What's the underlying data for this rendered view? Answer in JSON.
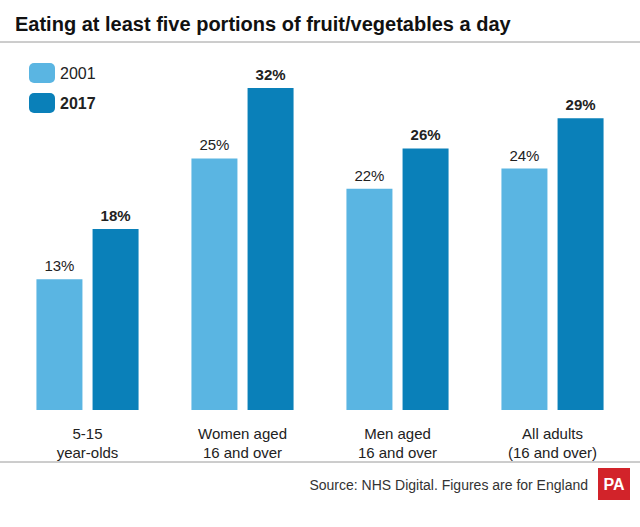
{
  "chart_data": {
    "type": "bar",
    "title": "Eating at least five portions of fruit/vegetables a day",
    "categories": [
      "5-15\nyear-olds",
      "Women aged\n16 and over",
      "Men aged\n16 and over",
      "All adults\n(16 and over)"
    ],
    "series": [
      {
        "name": "2001",
        "color": "#5ab5e2",
        "values": [
          13,
          25,
          22,
          24
        ],
        "value_labels": [
          "13%",
          "25%",
          "22%",
          "24%"
        ]
      },
      {
        "name": "2017",
        "color": "#0a80b9",
        "values": [
          18,
          32,
          26,
          29
        ],
        "value_labels": [
          "18%",
          "32%",
          "26%",
          "29%"
        ]
      }
    ],
    "ylim": [
      0,
      32
    ],
    "grid": false,
    "legend": "upper left",
    "data_labels": true,
    "tick_labels": "x",
    "annotations": [
      "Source: NHS Digital. Figures are for England",
      "PA"
    ]
  }
}
